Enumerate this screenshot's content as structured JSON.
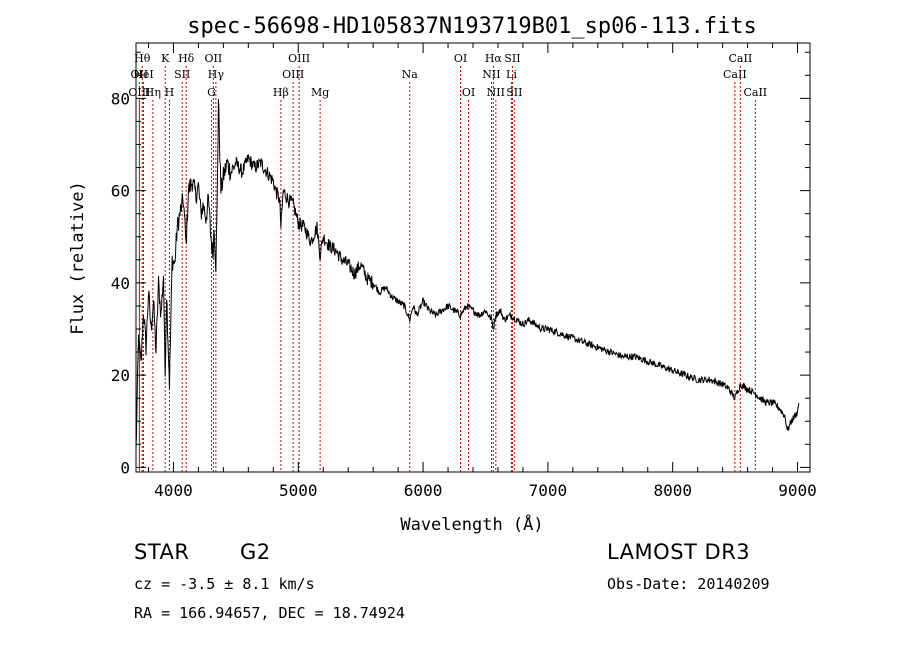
{
  "chart_data": {
    "type": "line",
    "title": "spec-56698-HD105837N193719B01_sp06-113.fits",
    "xlabel": "Wavelength (Å)",
    "ylabel": "Flux (relative)",
    "xlim": [
      3700,
      9100
    ],
    "ylim": [
      -1,
      92
    ],
    "xticks": [
      4000,
      5000,
      6000,
      7000,
      8000,
      9000
    ],
    "xtick_labels": [
      "4000",
      "5000",
      "6000",
      "7000",
      "8000",
      "9000"
    ],
    "yticks": [
      0,
      20,
      40,
      60,
      80
    ],
    "ytick_labels": [
      "0",
      "20",
      "40",
      "60",
      "80"
    ],
    "series": [
      {
        "name": "flux",
        "x": [
          3700,
          3720,
          3740,
          3760,
          3780,
          3800,
          3820,
          3840,
          3860,
          3880,
          3900,
          3920,
          3933,
          3945,
          3968,
          3990,
          4010,
          4030,
          4060,
          4080,
          4101,
          4120,
          4150,
          4180,
          4200,
          4220,
          4240,
          4260,
          4280,
          4300,
          4315,
          4326,
          4340,
          4350,
          4360,
          4380,
          4400,
          4430,
          4460,
          4500,
          4550,
          4600,
          4650,
          4700,
          4750,
          4800,
          4820,
          4850,
          4861,
          4880,
          4920,
          4960,
          5000,
          5050,
          5100,
          5150,
          5175,
          5200,
          5250,
          5300,
          5350,
          5400,
          5450,
          5500,
          5550,
          5600,
          5650,
          5700,
          5750,
          5800,
          5850,
          5893,
          5920,
          5950,
          6000,
          6050,
          6100,
          6150,
          6200,
          6250,
          6300,
          6350,
          6400,
          6450,
          6500,
          6550,
          6563,
          6580,
          6620,
          6650,
          6700,
          6750,
          6800,
          6850,
          6900,
          6950,
          7000,
          7100,
          7200,
          7300,
          7400,
          7500,
          7600,
          7700,
          7800,
          7900,
          8000,
          8100,
          8200,
          8300,
          8400,
          8450,
          8498,
          8542,
          8600,
          8662,
          8700,
          8750,
          8800,
          8850,
          8900,
          8920,
          8950,
          9000,
          9010
        ],
        "y": [
          3,
          28,
          22,
          34,
          26,
          38,
          30,
          36,
          25,
          40,
          33,
          42,
          20,
          38,
          18,
          45,
          44,
          52,
          56,
          58,
          48,
          60,
          62,
          59,
          61,
          55,
          57,
          54,
          58,
          50,
          46,
          52,
          44,
          56,
          80,
          60,
          63,
          66,
          64,
          66,
          64,
          67,
          65,
          66,
          64,
          62,
          60,
          58,
          52,
          60,
          58,
          57,
          53,
          52,
          49,
          52,
          46,
          50,
          48,
          47,
          45,
          44,
          42,
          44,
          41,
          40,
          38,
          39,
          37,
          36,
          35,
          32,
          35,
          33,
          36,
          34,
          33,
          34,
          35,
          34,
          33,
          35,
          34,
          33,
          34,
          32,
          30,
          33,
          34,
          32,
          33,
          32,
          31,
          32,
          31,
          30,
          30,
          29,
          28,
          27,
          26,
          25,
          24,
          24,
          23,
          22,
          21,
          20,
          19,
          19,
          18,
          17,
          15,
          18,
          17,
          16,
          15,
          14,
          14,
          13,
          11,
          8,
          10,
          12,
          14
        ]
      }
    ],
    "lines": [
      {
        "name": "OII",
        "wave": 3727,
        "row": 2
      },
      {
        "name": "OIII",
        "wave": 3727,
        "row": 3
      },
      {
        "name": "Hθ",
        "wave": 3750,
        "row": 1
      },
      {
        "name": "HeI",
        "wave": 3760,
        "row": 2
      },
      {
        "name": "Hη",
        "wave": 3835,
        "row": 3
      },
      {
        "name": "K",
        "wave": 3934,
        "row": 1
      },
      {
        "name": "H",
        "wave": 3968,
        "row": 3
      },
      {
        "name": "SII",
        "wave": 4070,
        "row": 2
      },
      {
        "name": "Hδ",
        "wave": 4102,
        "row": 1
      },
      {
        "name": "OII",
        "wave": 4320,
        "row": 1
      },
      {
        "name": "G",
        "wave": 4305,
        "row": 3
      },
      {
        "name": "Hγ",
        "wave": 4340,
        "row": 2
      },
      {
        "name": "Hβ",
        "wave": 4861,
        "row": 3
      },
      {
        "name": "OIII",
        "wave": 4959,
        "row": 2
      },
      {
        "name": "OIII",
        "wave": 5007,
        "row": 1
      },
      {
        "name": "Mg",
        "wave": 5175,
        "row": 3
      },
      {
        "name": "Na",
        "wave": 5893,
        "row": 2
      },
      {
        "name": "OI",
        "wave": 6300,
        "row": 1
      },
      {
        "name": "OI",
        "wave": 6364,
        "row": 3
      },
      {
        "name": "NII",
        "wave": 6548,
        "row": 2
      },
      {
        "name": "Hα",
        "wave": 6563,
        "row": 1
      },
      {
        "name": "NII",
        "wave": 6583,
        "row": 3
      },
      {
        "name": "Li",
        "wave": 6708,
        "row": 2
      },
      {
        "name": "SII",
        "wave": 6716,
        "row": 1
      },
      {
        "name": "SII",
        "wave": 6731,
        "row": 3
      },
      {
        "name": "CaII",
        "wave": 8498,
        "row": 2
      },
      {
        "name": "CaII",
        "wave": 8542,
        "row": 1
      },
      {
        "name": "CaII",
        "wave": 8662,
        "row": 3
      }
    ],
    "line_color": "#cc0000",
    "curve_color": "#000000"
  },
  "info": {
    "class_label": "STAR",
    "subclass": "G2",
    "survey": "LAMOST DR3",
    "cz": "cz = -3.5 ± 8.1 km/s",
    "obs_date": "Obs-Date: 20140209",
    "coords": "RA = 166.94657, DEC =  18.74924"
  }
}
